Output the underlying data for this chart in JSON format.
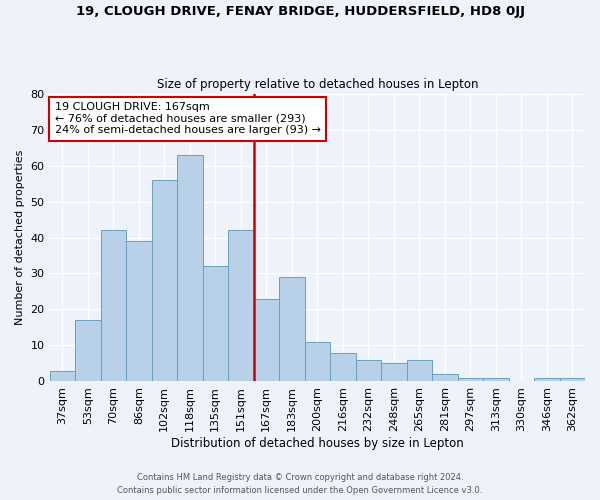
{
  "title": "19, CLOUGH DRIVE, FENAY BRIDGE, HUDDERSFIELD, HD8 0JJ",
  "subtitle": "Size of property relative to detached houses in Lepton",
  "xlabel": "Distribution of detached houses by size in Lepton",
  "ylabel": "Number of detached properties",
  "categories": [
    "37sqm",
    "53sqm",
    "70sqm",
    "86sqm",
    "102sqm",
    "118sqm",
    "135sqm",
    "151sqm",
    "167sqm",
    "183sqm",
    "200sqm",
    "216sqm",
    "232sqm",
    "248sqm",
    "265sqm",
    "281sqm",
    "297sqm",
    "313sqm",
    "330sqm",
    "346sqm",
    "362sqm"
  ],
  "values": [
    3,
    17,
    42,
    39,
    56,
    63,
    32,
    42,
    23,
    29,
    11,
    8,
    6,
    5,
    6,
    2,
    1,
    1,
    0,
    1,
    1
  ],
  "bar_color": "#b8d0e8",
  "bar_edge_color": "#6a9fc0",
  "highlight_index": 8,
  "highlight_color": "#cc0000",
  "ylim": [
    0,
    80
  ],
  "yticks": [
    0,
    10,
    20,
    30,
    40,
    50,
    60,
    70,
    80
  ],
  "annotation_title": "19 CLOUGH DRIVE: 167sqm",
  "annotation_line1": "← 76% of detached houses are smaller (293)",
  "annotation_line2": "24% of semi-detached houses are larger (93) →",
  "footer1": "Contains HM Land Registry data © Crown copyright and database right 2024.",
  "footer2": "Contains public sector information licensed under the Open Government Licence v3.0.",
  "background_color": "#eef2fb"
}
